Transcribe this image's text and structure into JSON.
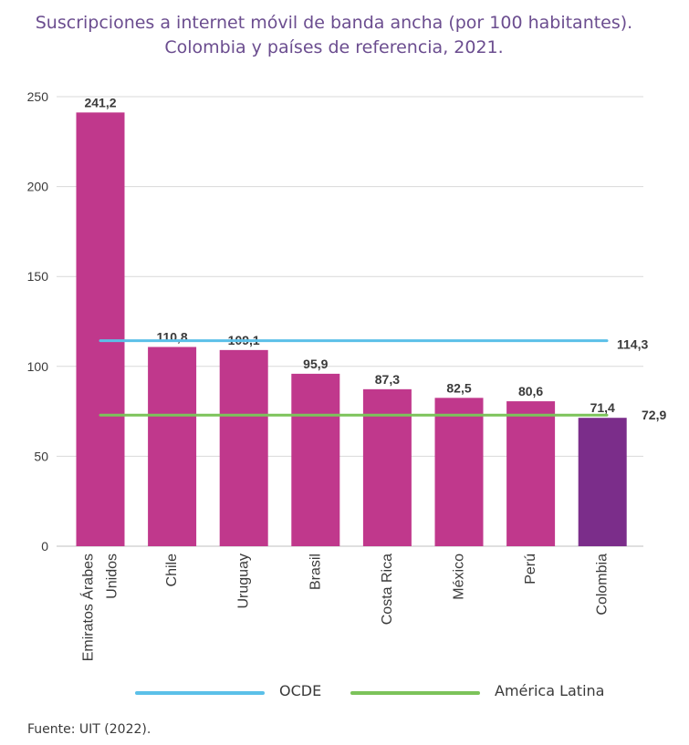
{
  "title_line1": "Suscripciones a internet móvil de banda ancha (por 100 habitantes).",
  "title_line2": "Colombia y países de referencia, 2021.",
  "source": "Fuente: UIT (2022).",
  "legend": {
    "ocde": "OCDE",
    "al": "América Latina"
  },
  "colors": {
    "bar": "#c0388c",
    "highlight": "#7b2d8a",
    "ocde": "#5bc0e8",
    "al": "#7cc35a",
    "grid": "#d9d9d9",
    "text": "#3a3a3a",
    "title": "#6b4d8f"
  },
  "chart_data": {
    "type": "bar",
    "categories": [
      {
        "lines": [
          "Emiratos Árabes",
          "Unidos"
        ]
      },
      {
        "lines": [
          "Chile"
        ]
      },
      {
        "lines": [
          "Uruguay"
        ]
      },
      {
        "lines": [
          "Brasil"
        ]
      },
      {
        "lines": [
          "Costa Rica"
        ]
      },
      {
        "lines": [
          "México"
        ]
      },
      {
        "lines": [
          "Perú"
        ]
      },
      {
        "lines": [
          "Colombia"
        ]
      }
    ],
    "values": [
      241.2,
      110.8,
      109.1,
      95.9,
      87.3,
      82.5,
      80.6,
      71.4
    ],
    "value_labels": [
      "241,2",
      "110,8",
      "109,1",
      "95,9",
      "87,3",
      "82,5",
      "80,6",
      "71,4"
    ],
    "highlight": "Colombia",
    "yticks": [
      0,
      50,
      100,
      150,
      200,
      250
    ],
    "ylim": [
      0,
      250
    ],
    "grid": true,
    "reference_lines": [
      {
        "name": "OCDE",
        "value": 114.3,
        "label": "114,3",
        "color": "#5bc0e8"
      },
      {
        "name": "América Latina",
        "value": 72.9,
        "label": "72,9",
        "color": "#7cc35a"
      }
    ]
  }
}
